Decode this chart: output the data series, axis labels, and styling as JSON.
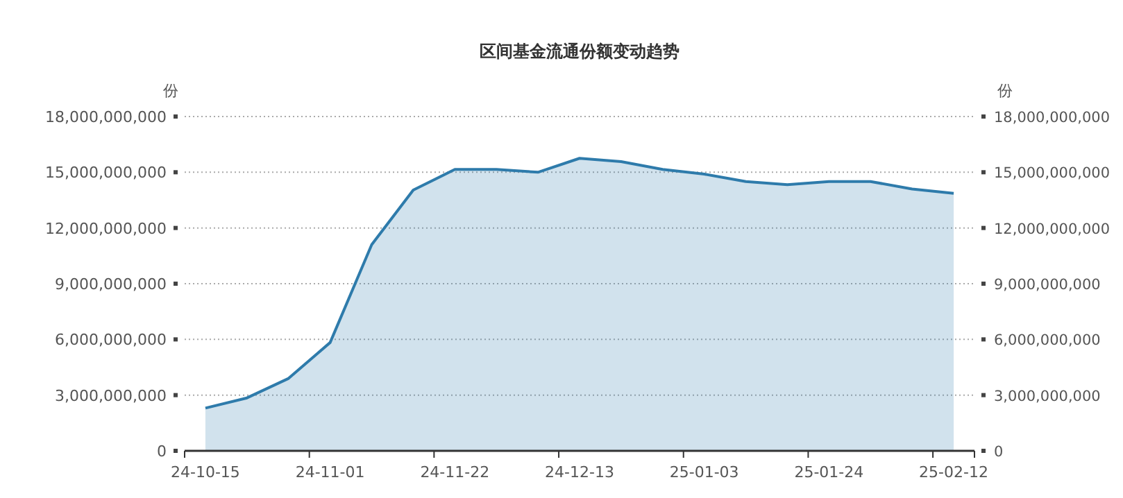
{
  "chart_data": {
    "type": "area",
    "title": "区间基金流通份额变动趋势",
    "ylabel": "份",
    "y2label": "份",
    "categories": [
      "24-10-15",
      null,
      null,
      "24-11-01",
      null,
      null,
      "24-11-22",
      null,
      null,
      "24-12-13",
      null,
      null,
      "25-01-03",
      null,
      null,
      "25-01-24",
      null,
      null,
      "25-02-12"
    ],
    "series": [
      {
        "color": "#2e7bab",
        "values": [
          2300000000,
          2850000000,
          3900000000,
          5830000000,
          11100000000,
          14040000000,
          15150000000,
          15150000000,
          15000000000,
          15750000000,
          15570000000,
          15150000000,
          14900000000,
          14500000000,
          14330000000,
          14500000000,
          14500000000,
          14100000000,
          13860000000
        ]
      }
    ],
    "ylim": [
      0,
      18000000000
    ],
    "yticks": [
      {
        "value": 0,
        "label": "0"
      },
      {
        "value": 3000000000,
        "label": "3,000,000,000"
      },
      {
        "value": 6000000000,
        "label": "6,000,000,000"
      },
      {
        "value": 9000000000,
        "label": "9,000,000,000"
      },
      {
        "value": 12000000000,
        "label": "12,000,000,000"
      },
      {
        "value": 15000000000,
        "label": "15,000,000,000"
      },
      {
        "value": 18000000000,
        "label": "18,000,000,000"
      }
    ],
    "y2lim": [
      0,
      18000000000
    ],
    "y2ticks": [
      {
        "value": 0,
        "label": "0"
      },
      {
        "value": 3000000000,
        "label": "3,000,000,000"
      },
      {
        "value": 6000000000,
        "label": "6,000,000,000"
      },
      {
        "value": 9000000000,
        "label": "9,000,000,000"
      },
      {
        "value": 12000000000,
        "label": "12,000,000,000"
      },
      {
        "value": 15000000000,
        "label": "15,000,000,000"
      },
      {
        "value": 18000000000,
        "label": "18,000,000,000"
      }
    ],
    "grid": "y",
    "marker": "none",
    "line_style": "solid"
  }
}
